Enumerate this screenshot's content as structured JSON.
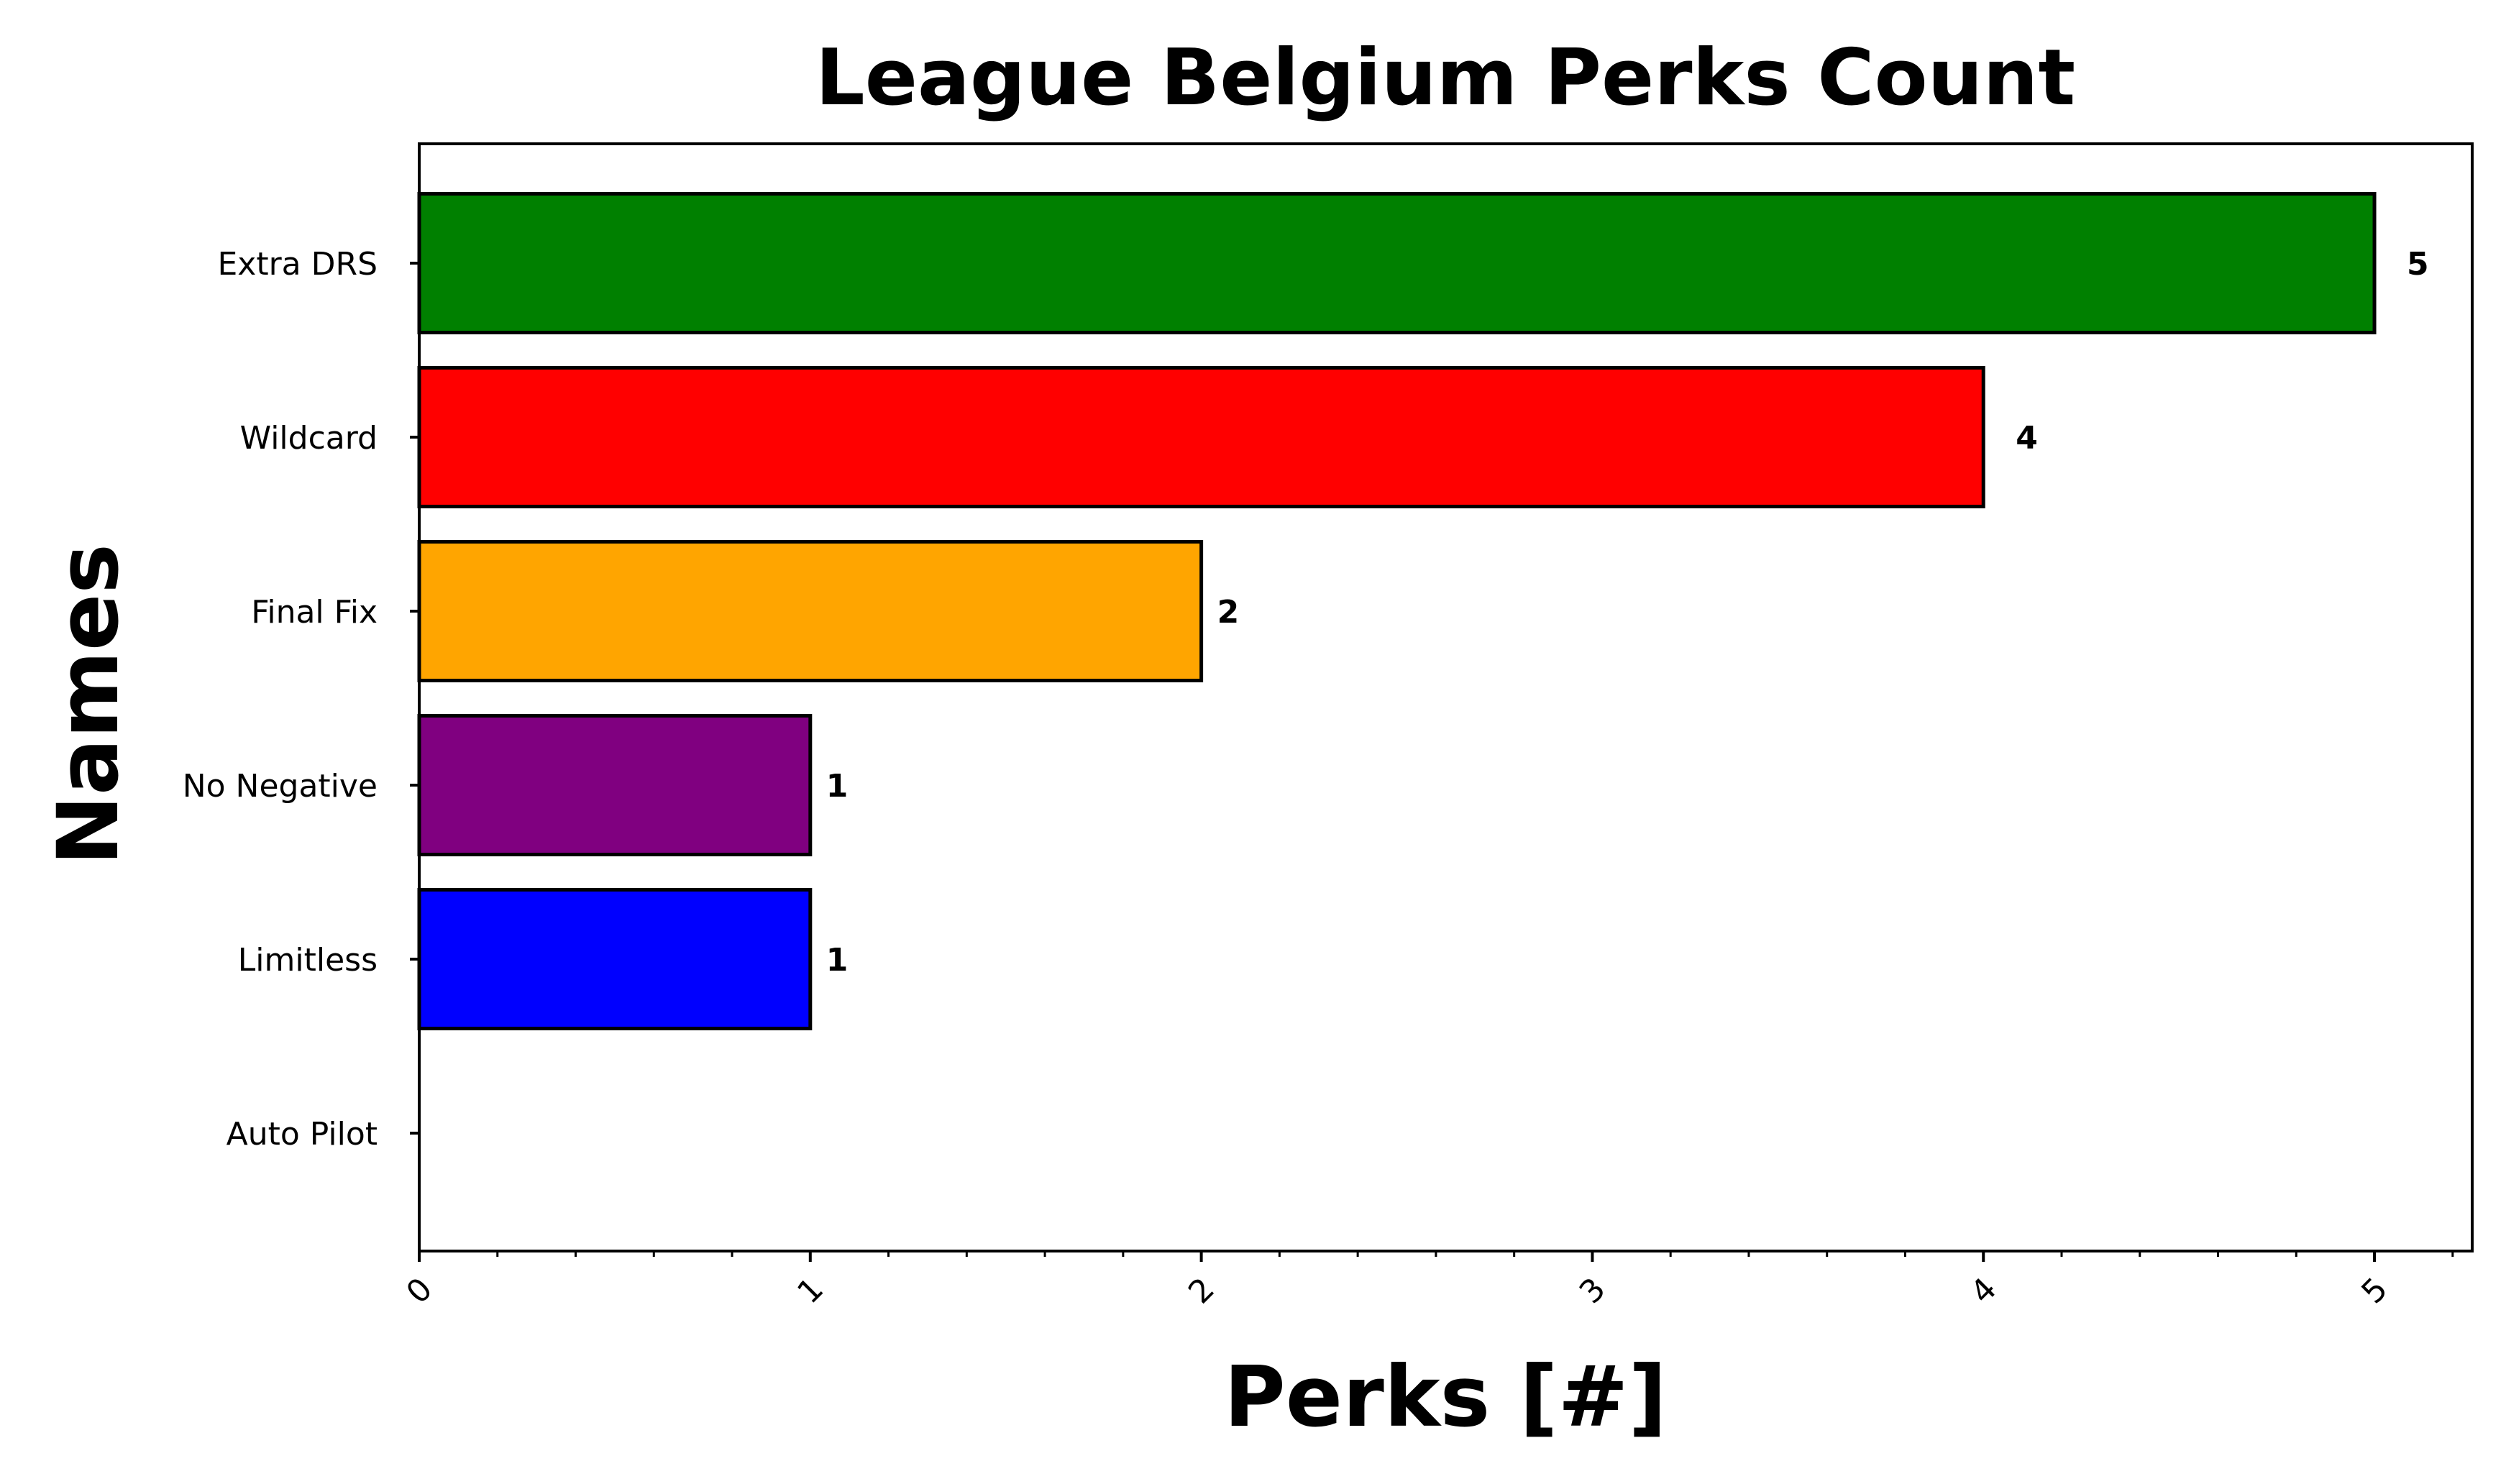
{
  "chart_data": {
    "type": "bar",
    "orientation": "horizontal",
    "title": "League Belgium Perks Count",
    "xlabel": "Perks [#]",
    "ylabel": "Names",
    "xlim": [
      0,
      5.25
    ],
    "xticks": [
      "0",
      "1",
      "2",
      "3",
      "4",
      "5"
    ],
    "categories": [
      "Extra DRS",
      "Wildcard",
      "Final Fix",
      "No Negative",
      "Limitless",
      "Auto Pilot"
    ],
    "values": [
      5,
      4,
      2,
      1,
      1,
      0
    ],
    "value_labels": [
      "5",
      "4",
      "2",
      "1",
      "1",
      ""
    ],
    "colors": [
      "#008000",
      "#ff0000",
      "#ffa500",
      "#800080",
      "#0000ff",
      "#ffffff"
    ],
    "edge_color": "#000000",
    "grid": false,
    "legend": "none"
  }
}
